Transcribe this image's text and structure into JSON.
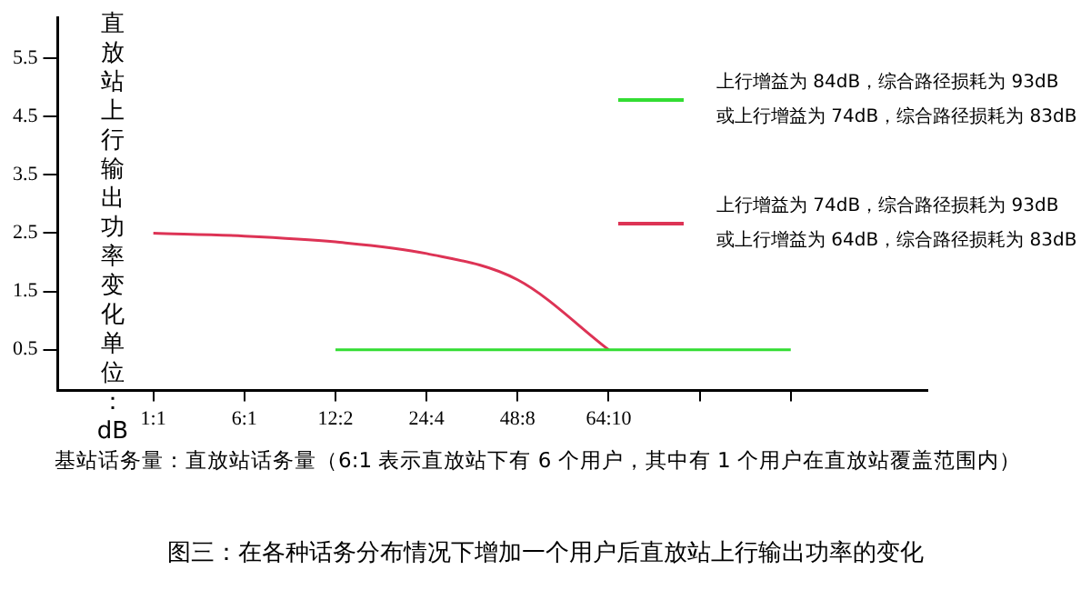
{
  "chart_data": {
    "type": "line",
    "title": "图三：在各种话务分布情况下增加一个用户后直放站上行输出功率的变化",
    "xlabel": "基站话务量：直放站话务量（6:1 表示直放站下有 6 个用户，其中有 1 个用户在直放站覆盖范围内）",
    "ylabel": "直放站上行输出功率变化单位：dB",
    "categories": [
      "1:1",
      "6:1",
      "12:2",
      "24:4",
      "48:8",
      "64:10",
      null,
      null
    ],
    "series": [
      {
        "name": "上行增益为 84dB，综合路径损耗为 93dB\n或上行增益为 74dB，综合路径损耗为 83dB",
        "color": "#33dd33",
        "values": [
          null,
          null,
          0.5,
          0.5,
          0.5,
          0.5,
          0.5,
          0.5
        ]
      },
      {
        "name": "上行增益为 74dB，综合路径损耗为 93dB\n或上行增益为 64dB，综合路径损耗为 83dB",
        "color": "#dd3355",
        "values": [
          2.5,
          2.45,
          2.35,
          2.15,
          1.7,
          0.5,
          null,
          null
        ]
      }
    ],
    "ylim": [
      -0.2,
      6.2
    ],
    "yticks": [
      5.5,
      4.5,
      3.5,
      2.5,
      1.5,
      0.5
    ],
    "grid": false,
    "legend": "top right",
    "marker": "none",
    "line_style": "solid"
  }
}
